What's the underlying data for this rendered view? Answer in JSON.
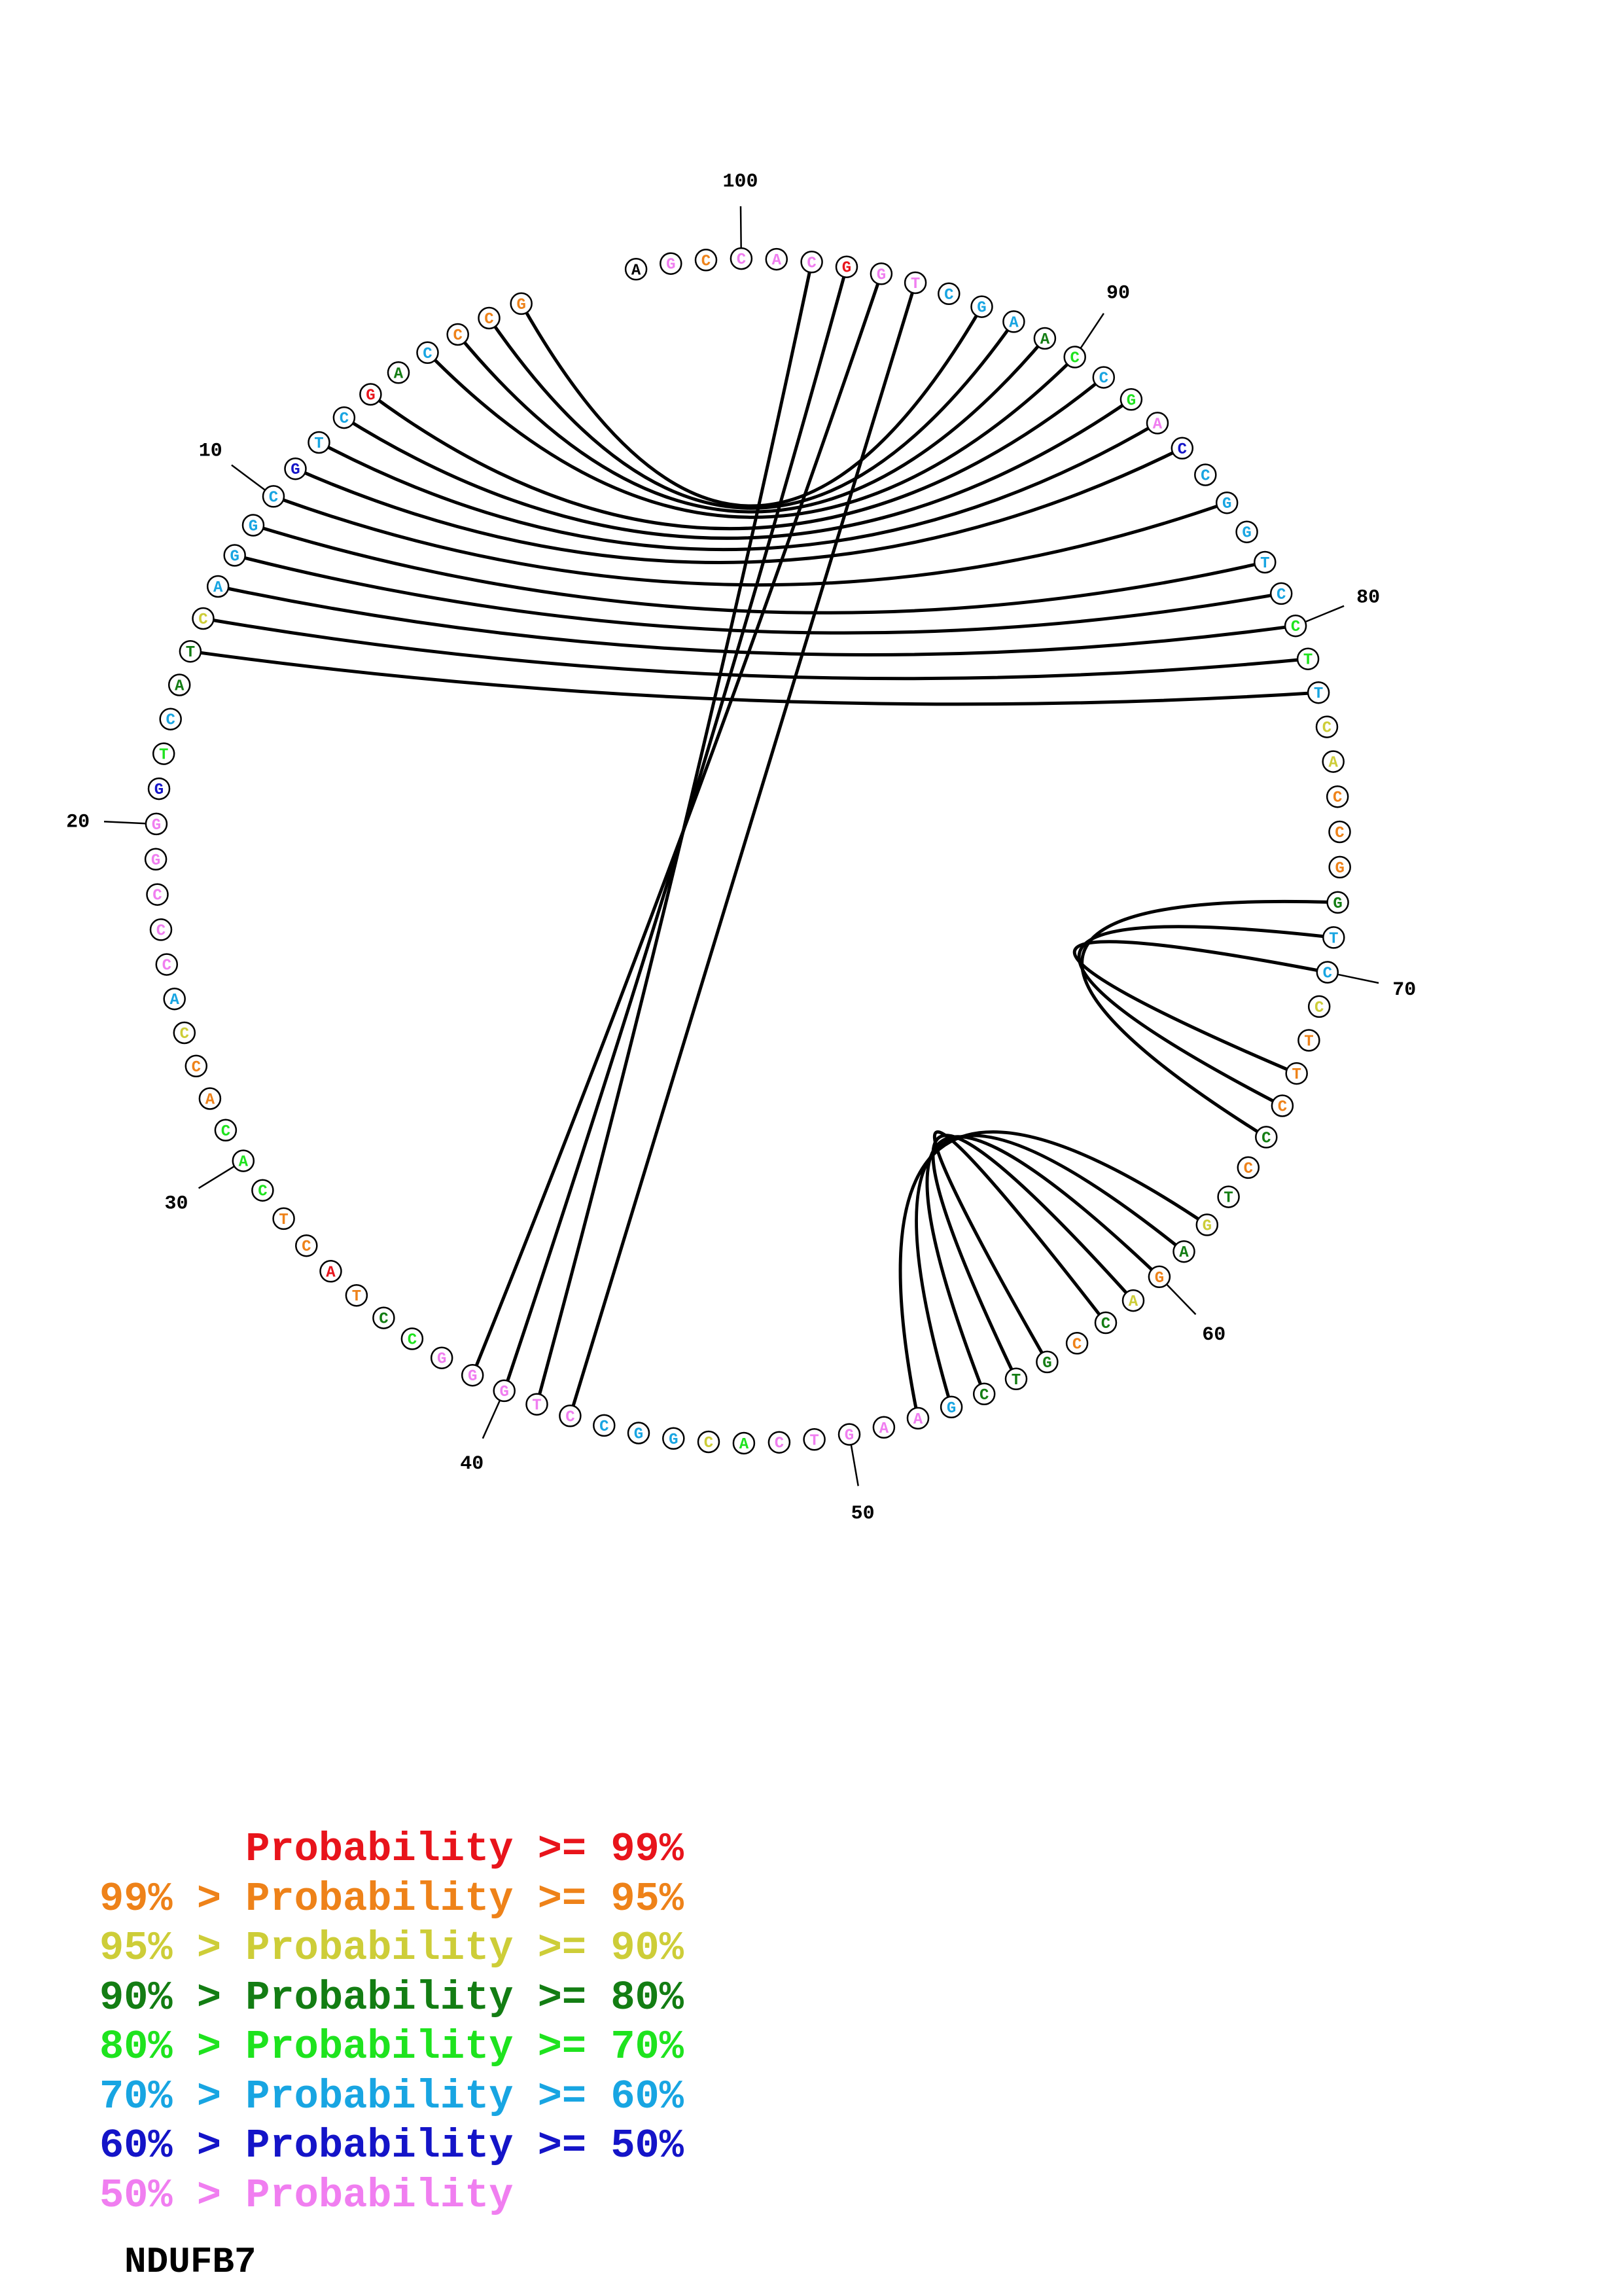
{
  "diagram": {
    "sequence": "GCCCAGCTGCGGACTACTGGGCCCACCACACTCATCCGGGTCCGGCACTGAAGCTGCCAGAGTCCCTTCCTGGCCACTTCCTGGCCAGCCAAGCTGGCACCGA",
    "nucleotide_tiers": [
      1,
      1,
      1,
      5,
      3,
      0,
      5,
      5,
      6,
      5,
      5,
      5,
      5,
      2,
      3,
      3,
      5,
      4,
      6,
      7,
      7,
      7,
      7,
      7,
      5,
      2,
      1,
      1,
      4,
      4,
      4,
      1,
      1,
      0,
      1,
      3,
      4,
      7,
      7,
      7,
      7,
      7,
      5,
      5,
      5,
      2,
      4,
      7,
      7,
      7,
      7,
      7,
      5,
      3,
      3,
      3,
      1,
      3,
      2,
      1,
      3,
      2,
      3,
      1,
      3,
      1,
      1,
      1,
      2,
      5,
      5,
      3,
      1,
      1,
      1,
      2,
      2,
      5,
      4,
      4,
      5,
      5,
      5,
      5,
      5,
      6,
      7,
      4,
      5,
      4,
      3,
      5,
      5,
      5,
      7,
      7,
      0,
      7,
      7,
      7,
      1,
      7
    ],
    "tick_labels": [
      {
        "position": 10,
        "text": "10"
      },
      {
        "position": 20,
        "text": "20"
      },
      {
        "position": 30,
        "text": "30"
      },
      {
        "position": 40,
        "text": "40"
      },
      {
        "position": 50,
        "text": "50"
      },
      {
        "position": 60,
        "text": "60"
      },
      {
        "position": 70,
        "text": "70"
      },
      {
        "position": 80,
        "text": "80"
      },
      {
        "position": 90,
        "text": "90"
      },
      {
        "position": 100,
        "text": "100"
      }
    ],
    "base_pairs": [
      [
        1,
        93
      ],
      [
        2,
        92
      ],
      [
        3,
        91
      ],
      [
        4,
        90
      ],
      [
        6,
        89
      ],
      [
        7,
        88
      ],
      [
        8,
        87
      ],
      [
        9,
        86
      ],
      [
        10,
        84
      ],
      [
        11,
        82
      ],
      [
        12,
        81
      ],
      [
        13,
        80
      ],
      [
        14,
        79
      ],
      [
        15,
        78
      ],
      [
        39,
        96
      ],
      [
        40,
        97
      ],
      [
        41,
        98
      ],
      [
        42,
        95
      ],
      [
        52,
        62
      ],
      [
        53,
        61
      ],
      [
        54,
        60
      ],
      [
        55,
        59
      ],
      [
        56,
        58
      ],
      [
        65,
        72
      ],
      [
        66,
        71
      ],
      [
        67,
        70
      ]
    ]
  },
  "legend": {
    "items": [
      {
        "text": "      Probability >= 99%",
        "color": "#e8141b"
      },
      {
        "text": "99% > Probability >= 95%",
        "color": "#ee8219"
      },
      {
        "text": "95% > Probability >= 90%",
        "color": "#cdcd38"
      },
      {
        "text": "90% > Probability >= 80%",
        "color": "#137d13"
      },
      {
        "text": "80% > Probability >= 70%",
        "color": "#1ee31e"
      },
      {
        "text": "70% > Probability >= 60%",
        "color": "#18a5e2"
      },
      {
        "text": "60% > Probability >= 50%",
        "color": "#1414c8"
      },
      {
        "text": "50% > Probability",
        "color": "#f07ef0"
      }
    ]
  },
  "title": "NDUFB7",
  "tier_colors": [
    "#e8141b",
    "#ee8219",
    "#cdcd38",
    "#137d13",
    "#1ee31e",
    "#18a5e2",
    "#1414c8",
    "#f07ef0"
  ]
}
